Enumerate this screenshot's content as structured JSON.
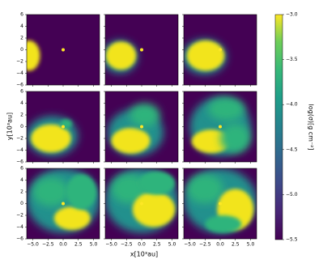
{
  "chart_data": {
    "type": "image-grid",
    "xlabel": "x[10³au]",
    "ylabel": "y[10³au]",
    "colorbar_label": "log(σ)[g cm⁻²]",
    "xlim": [
      -6,
      6
    ],
    "ylim": [
      -6,
      6
    ],
    "xticks": [
      {
        "value": -5,
        "label": "−5.0"
      },
      {
        "value": -2.5,
        "label": "−2.5"
      },
      {
        "value": 0,
        "label": "0.0"
      },
      {
        "value": 2.5,
        "label": "2.5"
      },
      {
        "value": 5,
        "label": "5.0"
      }
    ],
    "yticks": [
      {
        "value": -6,
        "label": "−6"
      },
      {
        "value": -4,
        "label": "−4"
      },
      {
        "value": -2,
        "label": "−2"
      },
      0,
      2,
      4,
      6
    ],
    "clim": [
      -5.5,
      -3.0
    ],
    "cticks": [
      {
        "value": -3,
        "label": "−3.0"
      },
      {
        "value": -3.5,
        "label": "−3.5"
      },
      {
        "value": -4,
        "label": "−4.0"
      },
      {
        "value": -4.5,
        "label": "−4.5"
      },
      {
        "value": -5,
        "label": "−5.0"
      },
      {
        "value": -5.5,
        "label": "−5.5"
      }
    ],
    "colormap": "viridis"
  }
}
